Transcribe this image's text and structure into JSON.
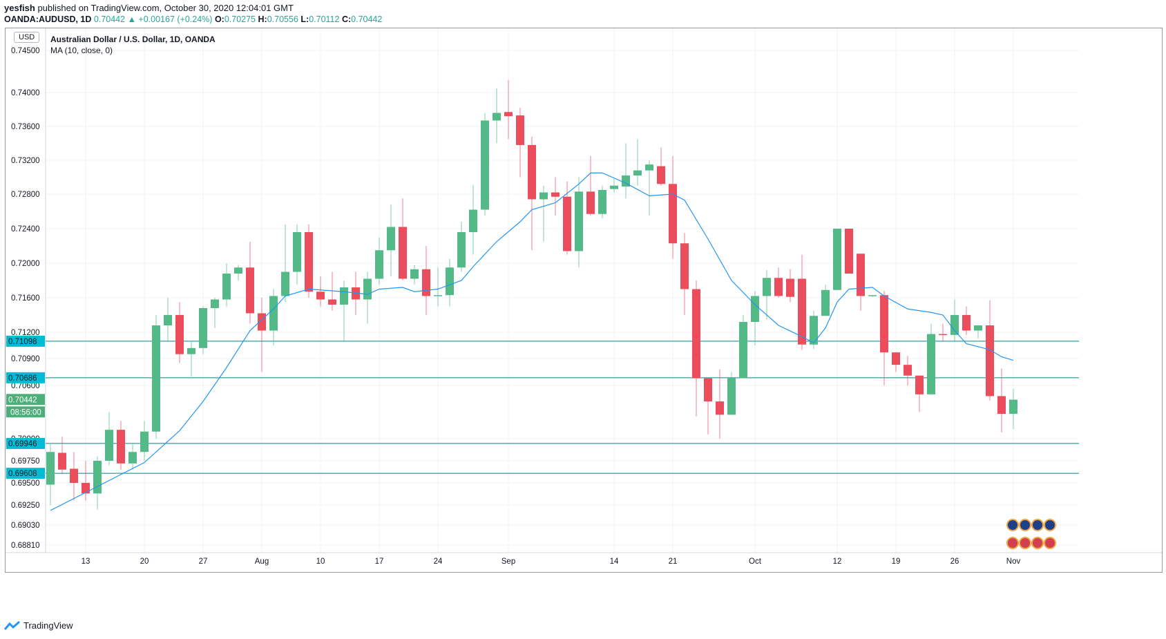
{
  "header": {
    "publisher": "yesfish",
    "published_text": "published on TradingView.com, October 30, 2020 12:04:01 GMT",
    "symbol": "OANDA:AUDUSD, 1D",
    "last": "0.70442",
    "change": "+0.00167 (+0.24%)",
    "o_label": "O:",
    "o": "0.70275",
    "h_label": "H:",
    "h": "0.70556",
    "l_label": "L:",
    "l": "0.70112",
    "c_label": "C:",
    "c": "0.70442"
  },
  "currency_badge": "USD",
  "legend": {
    "title": "Australian Dollar / U.S. Dollar, 1D, OANDA",
    "indicator": "MA (10, close, 0)"
  },
  "footer": {
    "brand": "TradingView"
  },
  "colors": {
    "up": "#53b987",
    "down": "#eb4d5c",
    "ma": "#2196f3",
    "hline": "#00838f",
    "label_blue": "#00bcd4",
    "label_green": "#4caf7a"
  },
  "price_labels": {
    "l1": "0.71098",
    "l2": "0.70686",
    "last_price": "0.70442",
    "countdown": "08:56:00",
    "l3": "0.69946",
    "l4": "0.69608"
  },
  "chart_data": {
    "type": "candlestick",
    "title": "Australian Dollar / U.S. Dollar, 1D, OANDA",
    "y_ticks": [
      "0.74500",
      "0.74000",
      "0.73600",
      "0.73200",
      "0.72800",
      "0.72400",
      "0.72000",
      "0.71600",
      "0.71200",
      "0.70900",
      "0.70600",
      "0.70000",
      "0.69750",
      "0.69500",
      "0.69250",
      "0.69030",
      "0.68810"
    ],
    "x_ticks": [
      {
        "label": "13",
        "i": 3
      },
      {
        "label": "20",
        "i": 8
      },
      {
        "label": "27",
        "i": 13
      },
      {
        "label": "Aug",
        "i": 18
      },
      {
        "label": "10",
        "i": 23
      },
      {
        "label": "17",
        "i": 28
      },
      {
        "label": "24",
        "i": 33
      },
      {
        "label": "Sep",
        "i": 39
      },
      {
        "label": "14",
        "i": 48
      },
      {
        "label": "21",
        "i": 53
      },
      {
        "label": "Oct",
        "i": 60
      },
      {
        "label": "12",
        "i": 67
      },
      {
        "label": "19",
        "i": 72
      },
      {
        "label": "26",
        "i": 77
      },
      {
        "label": "Nov",
        "i": 82
      }
    ],
    "horizontal_lines": [
      0.71098,
      0.70686,
      0.69946,
      0.69608
    ],
    "candles": [
      [
        0.6948,
        0.6995,
        0.6925,
        0.6985
      ],
      [
        0.6984,
        0.7002,
        0.696,
        0.6965
      ],
      [
        0.6966,
        0.6985,
        0.693,
        0.695
      ],
      [
        0.695,
        0.6975,
        0.693,
        0.6938
      ],
      [
        0.6938,
        0.698,
        0.692,
        0.6975
      ],
      [
        0.6975,
        0.703,
        0.697,
        0.701
      ],
      [
        0.701,
        0.702,
        0.6965,
        0.6972
      ],
      [
        0.6972,
        0.6995,
        0.6965,
        0.6985
      ],
      [
        0.6985,
        0.702,
        0.6975,
        0.7008
      ],
      [
        0.7008,
        0.714,
        0.7,
        0.7128
      ],
      [
        0.7128,
        0.716,
        0.711,
        0.714
      ],
      [
        0.714,
        0.7155,
        0.7085,
        0.7095
      ],
      [
        0.7095,
        0.711,
        0.707,
        0.7102
      ],
      [
        0.7102,
        0.715,
        0.7095,
        0.7148
      ],
      [
        0.7148,
        0.716,
        0.7125,
        0.7158
      ],
      [
        0.7158,
        0.72,
        0.715,
        0.7188
      ],
      [
        0.7188,
        0.7198,
        0.718,
        0.7195
      ],
      [
        0.7195,
        0.7225,
        0.713,
        0.7142
      ],
      [
        0.7142,
        0.716,
        0.7075,
        0.7122
      ],
      [
        0.7122,
        0.717,
        0.7105,
        0.7162
      ],
      [
        0.7162,
        0.7245,
        0.7155,
        0.719
      ],
      [
        0.719,
        0.7245,
        0.7175,
        0.7236
      ],
      [
        0.7236,
        0.7245,
        0.716,
        0.7167
      ],
      [
        0.7167,
        0.7185,
        0.715,
        0.7158
      ],
      [
        0.7158,
        0.719,
        0.7145,
        0.7152
      ],
      [
        0.7152,
        0.718,
        0.711,
        0.7172
      ],
      [
        0.7172,
        0.719,
        0.714,
        0.7158
      ],
      [
        0.7158,
        0.719,
        0.713,
        0.7182
      ],
      [
        0.7182,
        0.723,
        0.7175,
        0.7215
      ],
      [
        0.7215,
        0.7268,
        0.7185,
        0.7242
      ],
      [
        0.7242,
        0.7275,
        0.718,
        0.7182
      ],
      [
        0.7182,
        0.7198,
        0.7175,
        0.7193
      ],
      [
        0.7193,
        0.722,
        0.714,
        0.7162
      ],
      [
        0.7162,
        0.7195,
        0.715,
        0.7163
      ],
      [
        0.7163,
        0.7205,
        0.715,
        0.7195
      ],
      [
        0.7195,
        0.7248,
        0.719,
        0.7236
      ],
      [
        0.7236,
        0.7291,
        0.721,
        0.7262
      ],
      [
        0.7262,
        0.7376,
        0.7255,
        0.7367
      ],
      [
        0.7367,
        0.7405,
        0.734,
        0.7376
      ],
      [
        0.7377,
        0.7415,
        0.7345,
        0.7372
      ],
      [
        0.7373,
        0.7382,
        0.73,
        0.7338
      ],
      [
        0.7338,
        0.7348,
        0.7215,
        0.7274
      ],
      [
        0.7274,
        0.729,
        0.7225,
        0.7282
      ],
      [
        0.7282,
        0.73,
        0.7255,
        0.7277
      ],
      [
        0.7277,
        0.7295,
        0.721,
        0.7214
      ],
      [
        0.7214,
        0.73,
        0.7195,
        0.7283
      ],
      [
        0.7283,
        0.7325,
        0.7255,
        0.7257
      ],
      [
        0.7257,
        0.729,
        0.7252,
        0.7285
      ],
      [
        0.7286,
        0.7298,
        0.7282,
        0.729
      ],
      [
        0.7289,
        0.734,
        0.7275,
        0.7302
      ],
      [
        0.7302,
        0.7345,
        0.729,
        0.7308
      ],
      [
        0.7308,
        0.732,
        0.7255,
        0.7315
      ],
      [
        0.7313,
        0.7335,
        0.729,
        0.7292
      ],
      [
        0.7292,
        0.7325,
        0.7205,
        0.7223
      ],
      [
        0.7223,
        0.7235,
        0.714,
        0.717
      ],
      [
        0.717,
        0.718,
        0.7025,
        0.7068
      ],
      [
        0.7068,
        0.7068,
        0.7005,
        0.7042
      ],
      [
        0.7042,
        0.7078,
        0.7,
        0.7027
      ],
      [
        0.7027,
        0.7075,
        0.7027,
        0.7068
      ],
      [
        0.7068,
        0.714,
        0.7068,
        0.7132
      ],
      [
        0.7132,
        0.7168,
        0.7105,
        0.7162
      ],
      [
        0.7162,
        0.7192,
        0.7135,
        0.7183
      ],
      [
        0.7183,
        0.7195,
        0.716,
        0.7162
      ],
      [
        0.7182,
        0.7193,
        0.7155,
        0.7161
      ],
      [
        0.7182,
        0.721,
        0.71,
        0.7106
      ],
      [
        0.7106,
        0.7145,
        0.7101,
        0.7139
      ],
      [
        0.7139,
        0.7175,
        0.7139,
        0.7169
      ],
      [
        0.7169,
        0.724,
        0.7169,
        0.724
      ],
      [
        0.724,
        0.724,
        0.7188,
        0.7188
      ],
      [
        0.7211,
        0.7211,
        0.7145,
        0.7162
      ],
      [
        0.7162,
        0.7163,
        0.7161,
        0.7163
      ],
      [
        0.7163,
        0.7168,
        0.706,
        0.7097
      ],
      [
        0.7097,
        0.7097,
        0.7075,
        0.7083
      ],
      [
        0.7083,
        0.7093,
        0.706,
        0.7071
      ],
      [
        0.7071,
        0.7071,
        0.703,
        0.705
      ],
      [
        0.705,
        0.713,
        0.705,
        0.7118
      ],
      [
        0.7118,
        0.713,
        0.711,
        0.7117
      ],
      [
        0.7117,
        0.7158,
        0.711,
        0.714
      ],
      [
        0.714,
        0.715,
        0.7117,
        0.7122
      ],
      [
        0.7122,
        0.7128,
        0.7113,
        0.7128
      ],
      [
        0.7128,
        0.7157,
        0.7043,
        0.7048
      ],
      [
        0.7048,
        0.7079,
        0.7007,
        0.7028
      ],
      [
        0.7028,
        0.7056,
        0.7011,
        0.7044
      ]
    ],
    "ma": [
      [
        0,
        0.6919
      ],
      [
        8,
        0.6973
      ],
      [
        11,
        0.7009
      ],
      [
        13,
        0.7042
      ],
      [
        15,
        0.708
      ],
      [
        17,
        0.7122
      ],
      [
        19,
        0.7147
      ],
      [
        20,
        0.7162
      ],
      [
        22,
        0.717
      ],
      [
        25,
        0.7167
      ],
      [
        27,
        0.7164
      ],
      [
        28,
        0.717
      ],
      [
        30,
        0.7172
      ],
      [
        31,
        0.7167
      ],
      [
        33,
        0.717
      ],
      [
        35,
        0.718
      ],
      [
        36,
        0.7196
      ],
      [
        38,
        0.7225
      ],
      [
        40,
        0.7248
      ],
      [
        41,
        0.7262
      ],
      [
        43,
        0.727
      ],
      [
        45,
        0.7292
      ],
      [
        46,
        0.7305
      ],
      [
        47,
        0.7305
      ],
      [
        49,
        0.7293
      ],
      [
        51,
        0.7278
      ],
      [
        53,
        0.728
      ],
      [
        54,
        0.7273
      ],
      [
        56,
        0.7228
      ],
      [
        58,
        0.718
      ],
      [
        60,
        0.7152
      ],
      [
        62,
        0.7128
      ],
      [
        64,
        0.7115
      ],
      [
        65,
        0.7108
      ],
      [
        66,
        0.7125
      ],
      [
        67,
        0.7155
      ],
      [
        68,
        0.717
      ],
      [
        70,
        0.7172
      ],
      [
        71,
        0.7162
      ],
      [
        73,
        0.7147
      ],
      [
        75,
        0.7143
      ],
      [
        76,
        0.714
      ],
      [
        77,
        0.7122
      ],
      [
        78,
        0.7107
      ],
      [
        80,
        0.71
      ],
      [
        81,
        0.7092
      ],
      [
        82,
        0.7088
      ]
    ]
  }
}
